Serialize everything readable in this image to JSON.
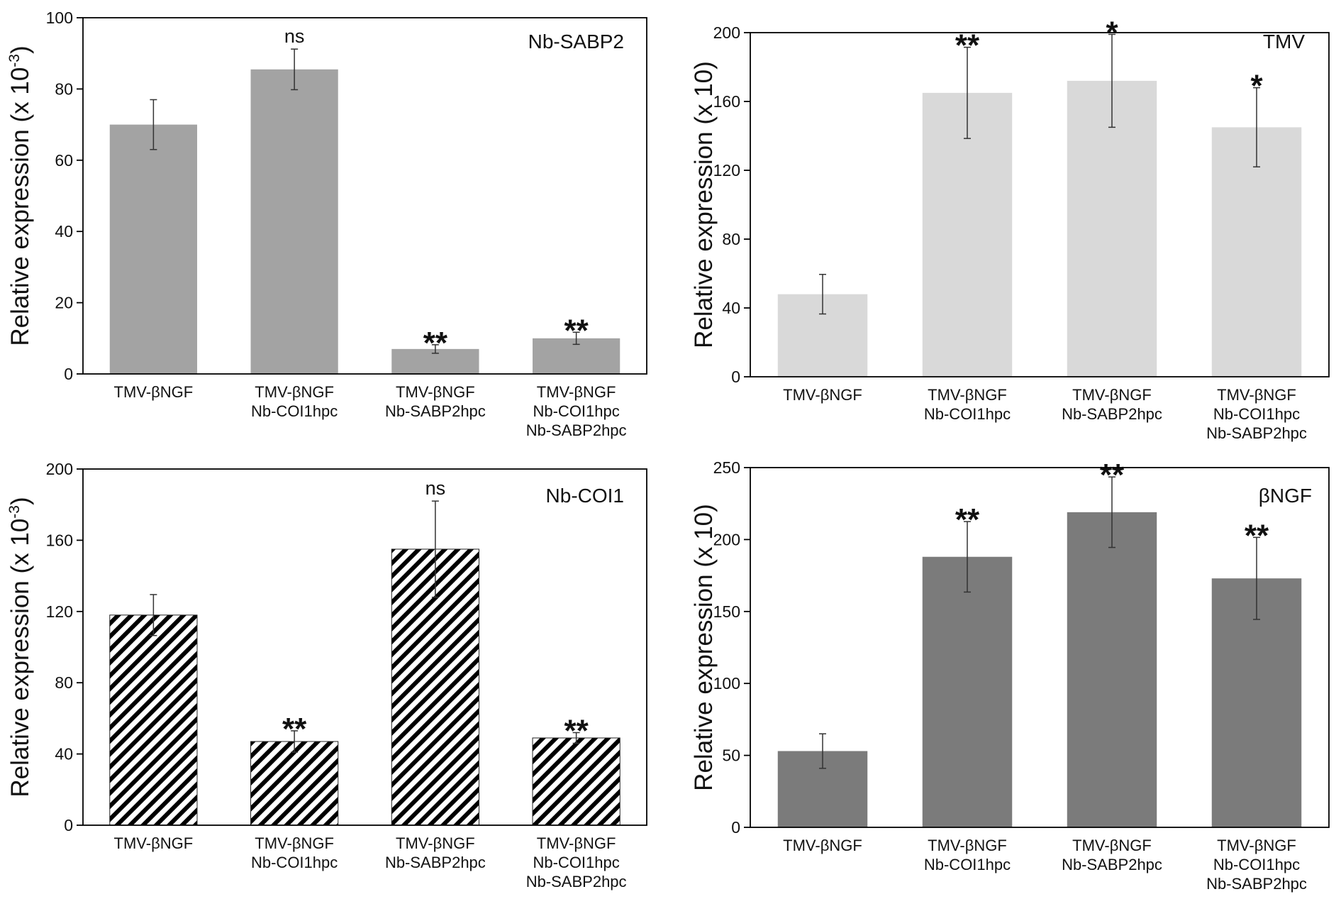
{
  "chart_data": [
    {
      "type": "bar",
      "title": "Nb-SABP2",
      "ylabel": "Relative expression (x 10",
      "ylabel_sup": "-3",
      "ylabel_close": ")",
      "ylim": [
        0,
        100
      ],
      "yticks": [
        0,
        20,
        40,
        60,
        80,
        100
      ],
      "categories": [
        [
          "TMV-βNGF"
        ],
        [
          "TMV-βNGF",
          "Nb-COI1hpc"
        ],
        [
          "TMV-βNGF",
          "Nb-SABP2hpc"
        ],
        [
          "TMV-βNGF",
          "Nb-COI1hpc",
          "Nb-SABP2hpc"
        ]
      ],
      "values": [
        70,
        85.5,
        7,
        10
      ],
      "errors": [
        7,
        5.7,
        1.2,
        1.7
      ],
      "significance": [
        "",
        "ns",
        "**",
        "**"
      ],
      "bar_color": "#a3a3a3",
      "bar_pattern": "solid"
    },
    {
      "type": "bar",
      "title": "TMV",
      "ylabel": "Relative expression (x 10)",
      "ylabel_sup": "",
      "ylabel_close": "",
      "ylim": [
        0,
        200
      ],
      "yticks": [
        0,
        40,
        80,
        120,
        160,
        200
      ],
      "categories": [
        [
          "TMV-βNGF"
        ],
        [
          "TMV-βNGF",
          "Nb-COI1hpc"
        ],
        [
          "TMV-βNGF",
          "Nb-SABP2hpc"
        ],
        [
          "TMV-βNGF",
          "Nb-COI1hpc",
          "Nb-SABP2hpc"
        ]
      ],
      "values": [
        48,
        165,
        172,
        145
      ],
      "errors": [
        11.5,
        26.5,
        27,
        23
      ],
      "significance": [
        "",
        "**",
        "*",
        "*"
      ],
      "bar_color": "#d9d9d9",
      "bar_pattern": "solid"
    },
    {
      "type": "bar",
      "title": "Nb-COI1",
      "ylabel": "Relative expression (x 10",
      "ylabel_sup": "-3",
      "ylabel_close": ")",
      "ylim": [
        0,
        200
      ],
      "yticks": [
        0,
        40,
        80,
        120,
        160,
        200
      ],
      "categories": [
        [
          "TMV-βNGF"
        ],
        [
          "TMV-βNGF",
          "Nb-COI1hpc"
        ],
        [
          "TMV-βNGF",
          "Nb-SABP2hpc"
        ],
        [
          "TMV-βNGF",
          "Nb-COI1hpc",
          "Nb-SABP2hpc"
        ]
      ],
      "values": [
        118,
        47,
        155,
        49
      ],
      "errors": [
        11.5,
        6,
        27,
        3
      ],
      "significance": [
        "",
        "**",
        "ns",
        "**"
      ],
      "bar_color": "#000000",
      "bar_pattern": "hatched"
    },
    {
      "type": "bar",
      "title": "βNGF",
      "ylabel": "Relative expression (x 10)",
      "ylabel_sup": "",
      "ylabel_close": "",
      "ylim": [
        0,
        250
      ],
      "yticks": [
        0,
        50,
        100,
        150,
        200,
        250
      ],
      "categories": [
        [
          "TMV-βNGF"
        ],
        [
          "TMV-βNGF",
          "Nb-COI1hpc"
        ],
        [
          "TMV-βNGF",
          "Nb-SABP2hpc"
        ],
        [
          "TMV-βNGF",
          "Nb-COI1hpc",
          "Nb-SABP2hpc"
        ]
      ],
      "values": [
        53,
        188,
        219,
        173
      ],
      "errors": [
        12,
        24.5,
        24.5,
        28.5
      ],
      "significance": [
        "",
        "**",
        "**",
        "**"
      ],
      "bar_color": "#7b7b7b",
      "bar_pattern": "solid"
    }
  ]
}
